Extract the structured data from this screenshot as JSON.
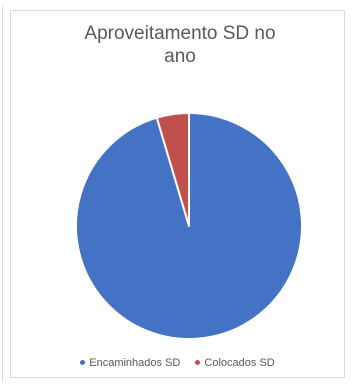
{
  "chart_data": {
    "type": "pie",
    "title_lines": [
      "Aproveitamento SD no",
      "ano"
    ],
    "series": [
      {
        "name": "Encaminhados SD",
        "value": 95.4,
        "color": "#4472C4"
      },
      {
        "name": "Colocados SD",
        "value": 4.6,
        "color": "#C0504D"
      }
    ],
    "legend_position": "bottom"
  }
}
